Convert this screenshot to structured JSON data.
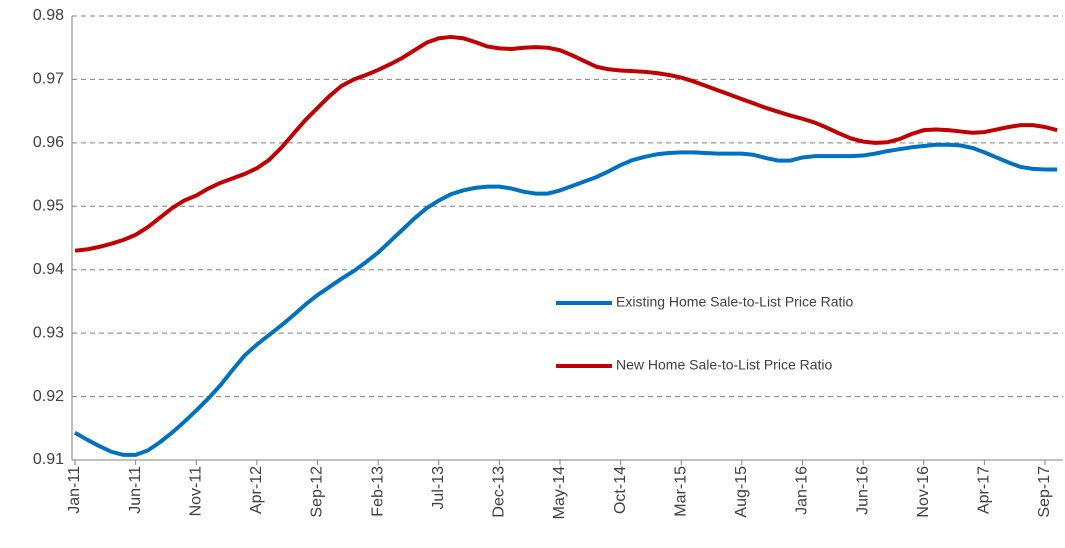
{
  "chart_data": {
    "type": "line",
    "categories": [
      "Jan-11",
      null,
      null,
      null,
      null,
      "Jun-11",
      null,
      null,
      null,
      null,
      "Nov-11",
      null,
      null,
      null,
      null,
      "Apr-12",
      null,
      null,
      null,
      null,
      "Sep-12",
      null,
      null,
      null,
      null,
      "Feb-13",
      null,
      null,
      null,
      null,
      "Jul-13",
      null,
      null,
      null,
      null,
      "Dec-13",
      null,
      null,
      null,
      null,
      "May-14",
      null,
      null,
      null,
      null,
      "Oct-14",
      null,
      null,
      null,
      null,
      "Mar-15",
      null,
      null,
      null,
      null,
      "Aug-15",
      null,
      null,
      null,
      null,
      "Jan-16",
      null,
      null,
      null,
      null,
      "Jun-16",
      null,
      null,
      null,
      null,
      "Nov-16",
      null,
      null,
      null,
      null,
      "Apr-17",
      null,
      null,
      null,
      null,
      "Sep-17",
      null
    ],
    "series": [
      {
        "name": "Existing Home Sale-to-List Price Ratio",
        "color": "#0070c0",
        "values": [
          0.9143,
          0.9132,
          0.9122,
          0.9113,
          0.9108,
          0.9108,
          0.9115,
          0.9128,
          0.9143,
          0.916,
          0.9178,
          0.9197,
          0.9218,
          0.9242,
          0.9265,
          0.9282,
          0.9297,
          0.9312,
          0.9328,
          0.9345,
          0.936,
          0.9373,
          0.9386,
          0.9398,
          0.9412,
          0.9427,
          0.9445,
          0.9463,
          0.9481,
          0.9497,
          0.9509,
          0.9519,
          0.9525,
          0.9529,
          0.9531,
          0.9531,
          0.9528,
          0.9523,
          0.952,
          0.952,
          0.9525,
          0.9532,
          0.9539,
          0.9546,
          0.9555,
          0.9565,
          0.9573,
          0.9578,
          0.9582,
          0.9584,
          0.9585,
          0.9585,
          0.9584,
          0.9583,
          0.9583,
          0.9583,
          0.9581,
          0.9576,
          0.9572,
          0.9572,
          0.9577,
          0.9579,
          0.9579,
          0.9579,
          0.9579,
          0.958,
          0.9583,
          0.9587,
          0.959,
          0.9593,
          0.9595,
          0.9597,
          0.9597,
          0.9596,
          0.9592,
          0.9585,
          0.9577,
          0.9569,
          0.9562,
          0.9559,
          0.9558,
          0.9558
        ]
      },
      {
        "name": "New Home Sale-to-List Price Ratio",
        "color": "#c00000",
        "values": [
          0.943,
          0.9432,
          0.9436,
          0.9441,
          0.9447,
          0.9455,
          0.9467,
          0.9482,
          0.9497,
          0.9509,
          0.9517,
          0.9528,
          0.9537,
          0.9544,
          0.9551,
          0.956,
          0.9573,
          0.9592,
          0.9614,
          0.9636,
          0.9655,
          0.9674,
          0.969,
          0.97,
          0.9707,
          0.9715,
          0.9724,
          0.9734,
          0.9746,
          0.9758,
          0.9765,
          0.9767,
          0.9765,
          0.9759,
          0.9752,
          0.9749,
          0.9748,
          0.975,
          0.9751,
          0.975,
          0.9746,
          0.9738,
          0.9729,
          0.972,
          0.9716,
          0.9714,
          0.9713,
          0.9712,
          0.971,
          0.9707,
          0.9703,
          0.9697,
          0.969,
          0.9683,
          0.9676,
          0.9669,
          0.9662,
          0.9655,
          0.9649,
          0.9643,
          0.9638,
          0.9632,
          0.9624,
          0.9615,
          0.9607,
          0.9602,
          0.96,
          0.9601,
          0.9606,
          0.9614,
          0.962,
          0.9621,
          0.962,
          0.9618,
          0.9616,
          0.9617,
          0.9621,
          0.9625,
          0.9628,
          0.9628,
          0.9625,
          0.962
        ]
      }
    ],
    "ylim": [
      0.91,
      0.98
    ],
    "yticks": [
      0.91,
      0.92,
      0.93,
      0.94,
      0.95,
      0.96,
      0.97,
      0.98
    ],
    "grid": true
  }
}
